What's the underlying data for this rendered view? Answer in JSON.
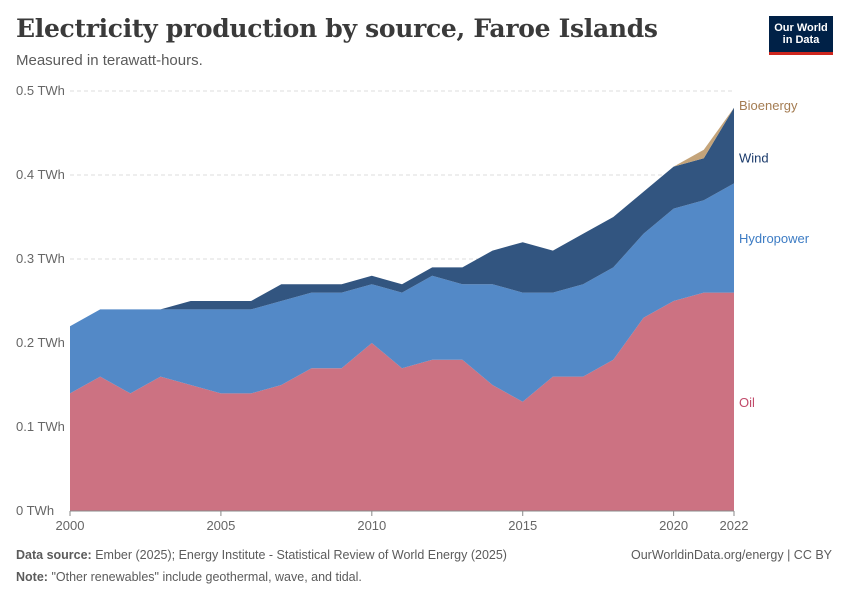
{
  "header": {
    "title": "Electricity production by source, Faroe Islands",
    "subtitle": "Measured in terawatt-hours."
  },
  "logo": {
    "line1": "Our World",
    "line2": "in Data"
  },
  "footer": {
    "source_label": "Data source:",
    "source_text": "Ember (2025); Energy Institute - Statistical Review of World Energy (2025)",
    "note_label": "Note:",
    "note_text": "\"Other renewables\" include geothermal, wave, and tidal.",
    "credit": "OurWorldinData.org/energy | CC BY"
  },
  "colors": {
    "oil": "#cc7282",
    "hydropower": "#5389c7",
    "wind": "#325580",
    "bioenergy": "#c4a47a",
    "oil_label": "#c14a6a",
    "hydropower_label": "#3d7cc4",
    "wind_label": "#1a3a6b",
    "bioenergy_label": "#a47c52"
  },
  "chart_data": {
    "type": "area",
    "stacked": true,
    "title": "Electricity production by source, Faroe Islands",
    "subtitle": "Measured in terawatt-hours.",
    "unit": "TWh",
    "x": [
      2000,
      2001,
      2002,
      2003,
      2004,
      2005,
      2006,
      2007,
      2008,
      2009,
      2010,
      2011,
      2012,
      2013,
      2014,
      2015,
      2016,
      2017,
      2018,
      2019,
      2020,
      2021,
      2022
    ],
    "x_tick_labels": [
      "2000",
      "2005",
      "2010",
      "2015",
      "2020",
      "2022"
    ],
    "y_tick_labels": [
      "0 TWh",
      "0.1 TWh",
      "0.2 TWh",
      "0.3 TWh",
      "0.4 TWh",
      "0.5 TWh"
    ],
    "ylim": [
      0,
      0.5
    ],
    "grid": "horizontal dashed",
    "legend": "inline labels at right",
    "series": [
      {
        "name": "Oil",
        "values": [
          0.14,
          0.16,
          0.14,
          0.16,
          0.15,
          0.14,
          0.14,
          0.15,
          0.17,
          0.17,
          0.2,
          0.17,
          0.18,
          0.18,
          0.15,
          0.13,
          0.16,
          0.16,
          0.18,
          0.23,
          0.25,
          0.26,
          0.26
        ]
      },
      {
        "name": "Hydropower",
        "values": [
          0.08,
          0.08,
          0.1,
          0.08,
          0.09,
          0.1,
          0.1,
          0.1,
          0.09,
          0.09,
          0.07,
          0.09,
          0.1,
          0.09,
          0.12,
          0.13,
          0.1,
          0.11,
          0.11,
          0.1,
          0.11,
          0.11,
          0.13
        ]
      },
      {
        "name": "Wind",
        "values": [
          0.0,
          0.0,
          0.0,
          0.0,
          0.01,
          0.01,
          0.01,
          0.02,
          0.01,
          0.01,
          0.01,
          0.01,
          0.01,
          0.02,
          0.04,
          0.06,
          0.05,
          0.06,
          0.06,
          0.05,
          0.05,
          0.05,
          0.09
        ]
      },
      {
        "name": "Bioenergy",
        "values": [
          0.0,
          0.0,
          0.0,
          0.0,
          0.0,
          0.0,
          0.0,
          0.0,
          0.0,
          0.0,
          0.0,
          0.0,
          0.0,
          0.0,
          0.0,
          0.0,
          0.0,
          0.0,
          0.0,
          0.0,
          0.0,
          0.01,
          0.0
        ]
      }
    ]
  }
}
